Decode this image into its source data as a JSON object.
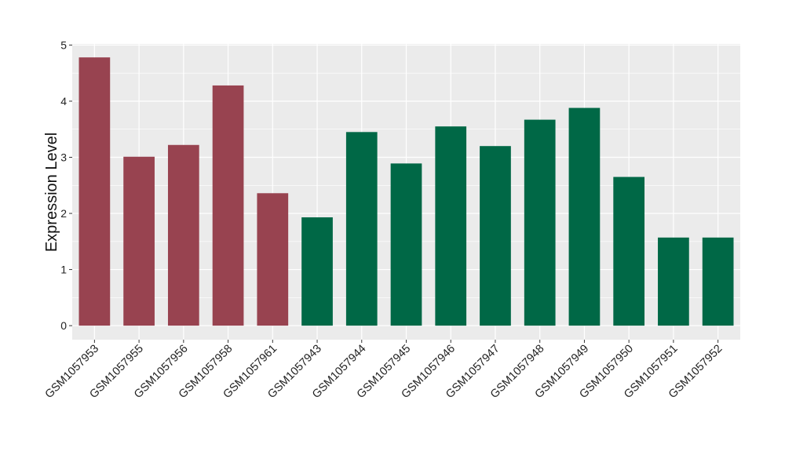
{
  "chart_data": {
    "type": "bar",
    "title": "",
    "xlabel": "",
    "ylabel": "Expression Level",
    "ylim": [
      -0.25,
      5.02
    ],
    "yticks": [
      0,
      1,
      2,
      3,
      4,
      5
    ],
    "grid": true,
    "legend": "none",
    "categories": [
      "GSM1057953",
      "GSM1057955",
      "GSM1057956",
      "GSM1057958",
      "GSM1057961",
      "GSM1057943",
      "GSM1057944",
      "GSM1057945",
      "GSM1057946",
      "GSM1057947",
      "GSM1057948",
      "GSM1057949",
      "GSM1057950",
      "GSM1057951",
      "GSM1057952"
    ],
    "values": [
      4.78,
      3.01,
      3.22,
      4.28,
      2.36,
      1.93,
      3.45,
      2.89,
      3.55,
      3.2,
      3.67,
      3.88,
      2.65,
      1.57,
      1.57
    ],
    "bar_colors": [
      "#984350",
      "#984350",
      "#984350",
      "#984350",
      "#984350",
      "#006846",
      "#006846",
      "#006846",
      "#006846",
      "#006846",
      "#006846",
      "#006846",
      "#006846",
      "#006846",
      "#006846"
    ],
    "colors": {
      "panel": "#ebebeb",
      "grid": "#ffffff",
      "group_a": "#984350",
      "group_b": "#006846"
    }
  }
}
